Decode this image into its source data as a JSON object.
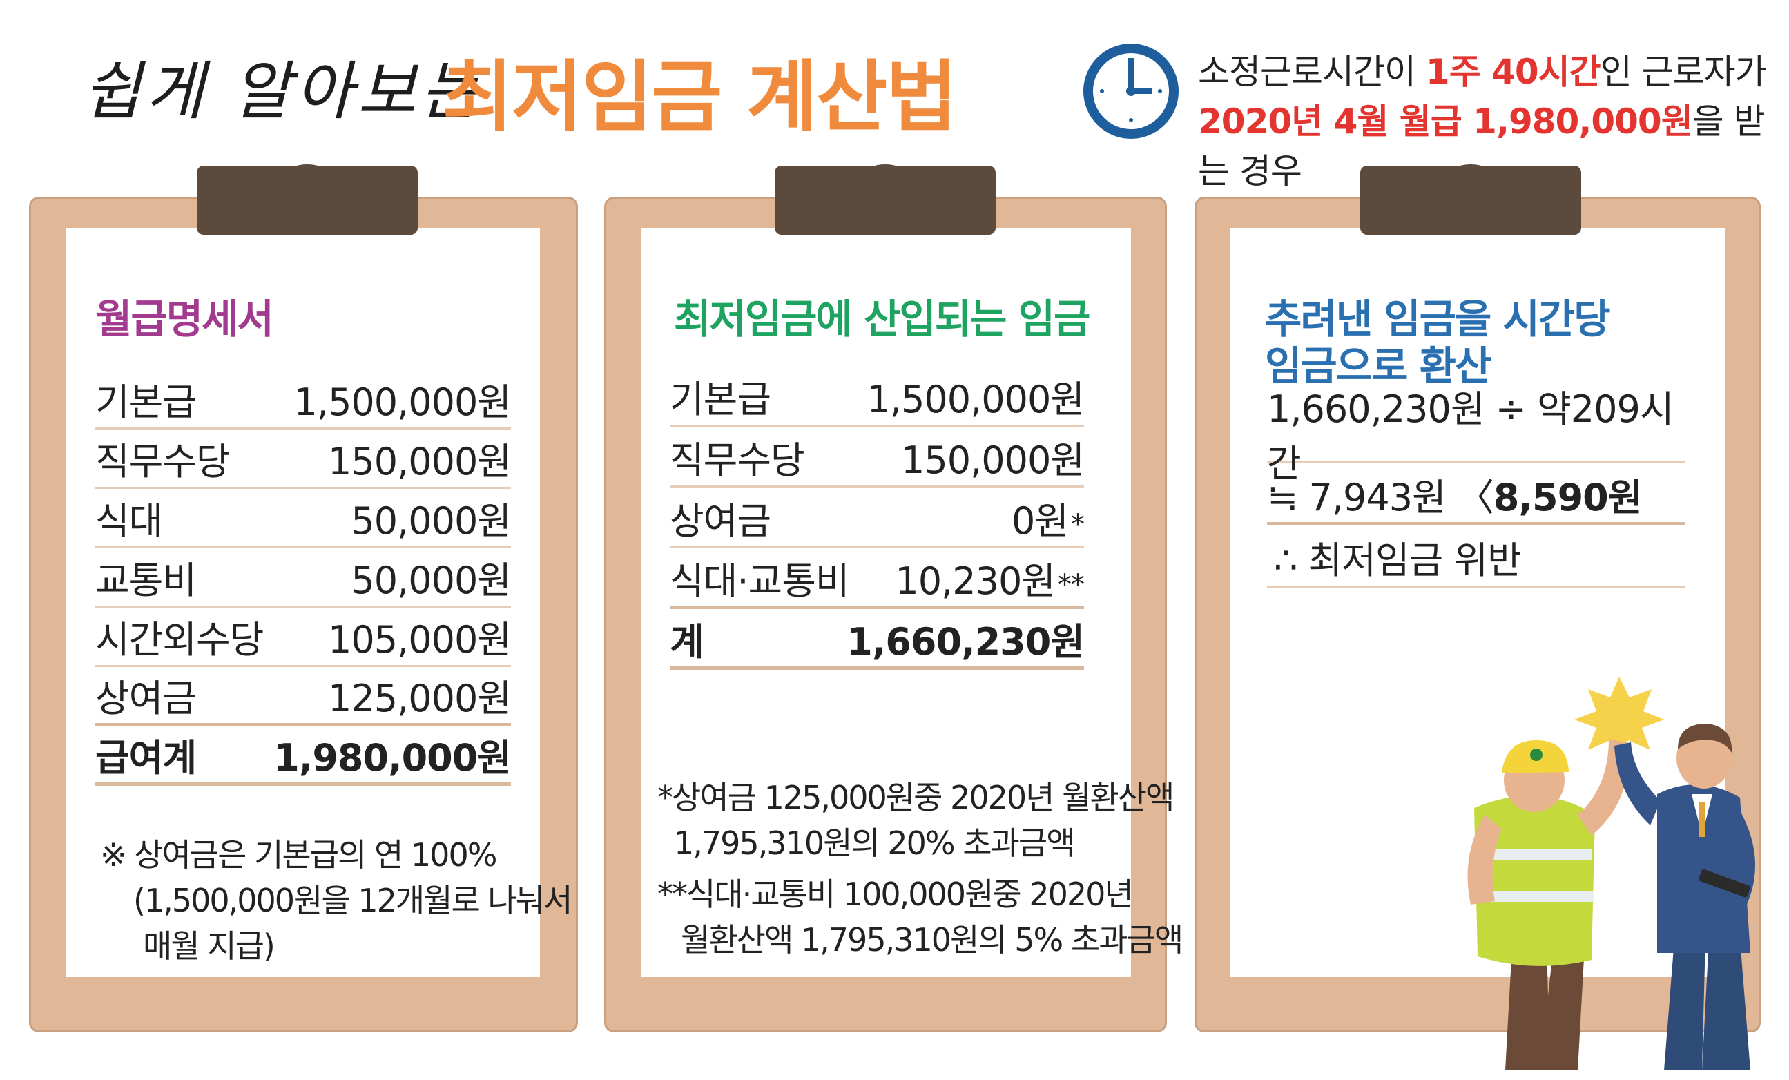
{
  "header": {
    "subtitle": "쉽게 알아보는",
    "title": "최저임금 계산법",
    "note_line1_a": "소정근로시간이 ",
    "note_line1_red": "1주 40시간",
    "note_line1_b": "인 근로자가",
    "note_line2_red": "2020년 4월 월급 1,980,000원",
    "note_line2_b": "을 받는 경우"
  },
  "colors": {
    "orange": "#f08a3c",
    "purple": "#a23b8f",
    "green": "#1ea361",
    "blue": "#2a6fb0",
    "red": "#e3342f",
    "board": "#e0b898",
    "clip": "#5c4a3d"
  },
  "panel1": {
    "title": "월급명세서",
    "rows": [
      {
        "label": "기본급",
        "value": "1,500,000원"
      },
      {
        "label": "직무수당",
        "value": "150,000원"
      },
      {
        "label": "식대",
        "value": "50,000원"
      },
      {
        "label": "교통비",
        "value": "50,000원"
      },
      {
        "label": "시간외수당",
        "value": "105,000원"
      },
      {
        "label": "상여금",
        "value": "125,000원"
      }
    ],
    "total": {
      "label": "급여계",
      "value": "1,980,000원"
    },
    "note_line1": "※ 상여금은 기본급의 연 100%",
    "note_line2": "(1,500,000원을 12개월로 나눠서",
    "note_line3": "매월 지급)"
  },
  "panel2": {
    "title": "최저임금에 산입되는 임금",
    "rows": [
      {
        "label": "기본급",
        "value": "1,500,000원",
        "mark": ""
      },
      {
        "label": "직무수당",
        "value": "150,000원",
        "mark": ""
      },
      {
        "label": "상여금",
        "value": "0원",
        "mark": "*"
      },
      {
        "label": "식대·교통비",
        "value": "10,230원",
        "mark": "**"
      }
    ],
    "total": {
      "label": "계",
      "value": "1,660,230원"
    },
    "note1_line1": "*상여금 125,000원중 2020년 월환산액",
    "note1_line2": "1,795,310원의 20% 초과금액",
    "note2_line1": "**식대·교통비 100,000원중 2020년",
    "note2_line2": "월환산액 1,795,310원의 5% 초과금액"
  },
  "panel3": {
    "title_line1": "추려낸 임금을 시간당",
    "title_line2": "임금으로 환산",
    "line1": "1,660,230원 ÷ 약209시간",
    "line2_a": "≒ 7,943원 〈 ",
    "line2_b": "8,590원",
    "line3": "∴ 최저임금 위반"
  },
  "icons": {
    "clock": "clock-icon",
    "illustration": "high-five-workers-illustration"
  }
}
